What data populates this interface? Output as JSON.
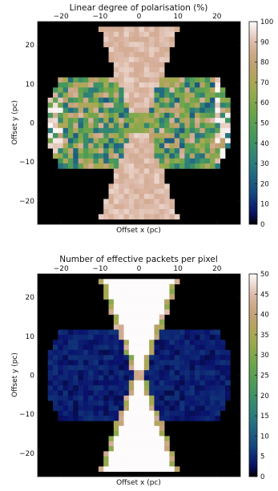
{
  "chart_data": [
    {
      "type": "heatmap",
      "title": "Linear degree of polarisation (%)",
      "xlabel": "Offset x (pc)",
      "ylabel": "Offset y (pc)",
      "xlim": [
        -26,
        26
      ],
      "ylim": [
        -26,
        26
      ],
      "xticks": [
        -20,
        -10,
        0,
        10,
        20
      ],
      "yticks": [
        -20,
        -10,
        0,
        10,
        20
      ],
      "xtick_labels": [
        "−20",
        "−10",
        "0",
        "10",
        "20"
      ],
      "ytick_labels": [
        "−20",
        "−10",
        "0",
        "10",
        "20"
      ],
      "colorbar": {
        "min": 0,
        "max": 100,
        "ticks": [
          0,
          10,
          20,
          30,
          40,
          50,
          60,
          70,
          80,
          90,
          100
        ],
        "labels": [
          "0",
          "10",
          "20",
          "30",
          "40",
          "50",
          "60",
          "70",
          "80",
          "90",
          "100"
        ],
        "colormap": "gist_earth"
      },
      "background_color": "#000000",
      "map_cells": 40,
      "regions": {
        "polar_cones": {
          "approx_value": 90,
          "half_width_at_top_pc": 10,
          "half_width_at_center_pc": 1.5
        },
        "equatorial_torus": {
          "approx_value": 55,
          "value_spread": 35,
          "half_height_pc": 12,
          "half_width_pc": 23
        },
        "central_band": {
          "approx_value": 65
        }
      }
    },
    {
      "type": "heatmap",
      "title": "Number of effective packets per pixel",
      "xlabel": "Offset x (pc)",
      "ylabel": "Offset y (pc)",
      "xlim": [
        -26,
        26
      ],
      "ylim": [
        -26,
        26
      ],
      "xticks": [
        -20,
        -10,
        0,
        10,
        20
      ],
      "yticks": [
        -20,
        -10,
        0,
        10,
        20
      ],
      "xtick_labels": [
        "−20",
        "−10",
        "0",
        "10",
        "20"
      ],
      "ytick_labels": [
        "−20",
        "−10",
        "0",
        "10",
        "20"
      ],
      "colorbar": {
        "min": 0,
        "max": 50,
        "ticks": [
          0,
          5,
          10,
          15,
          20,
          25,
          30,
          35,
          40,
          45,
          50
        ],
        "labels": [
          "0",
          "5",
          "10",
          "15",
          "20",
          "25",
          "30",
          "35",
          "40",
          "45",
          "50"
        ],
        "colormap": "gist_earth"
      },
      "background_color": "#000000",
      "map_cells": 40,
      "regions": {
        "polar_cones": {
          "approx_value": 50,
          "edge_value": 30,
          "half_width_at_top_pc": 10,
          "half_width_at_center_pc": 1.5
        },
        "equatorial_torus": {
          "approx_value": 4,
          "value_spread": 2,
          "half_height_pc": 12,
          "half_width_pc": 23
        }
      }
    }
  ]
}
